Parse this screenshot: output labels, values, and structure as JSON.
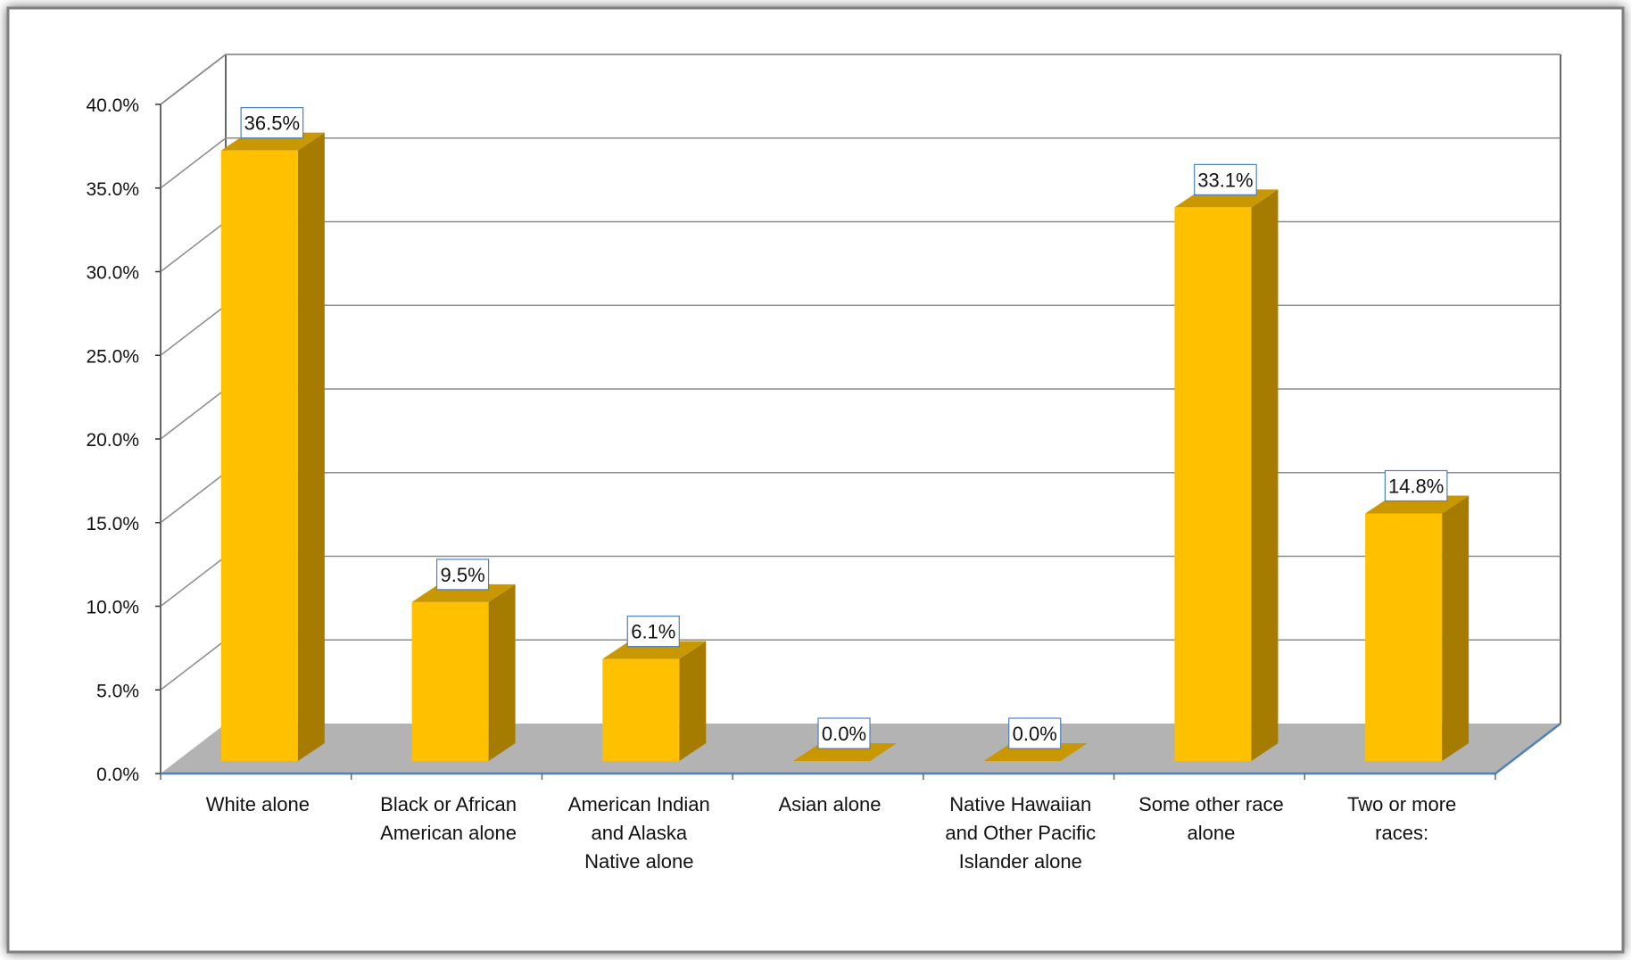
{
  "chart_data": {
    "type": "bar",
    "style": "3d-column",
    "categories": [
      [
        "White alone"
      ],
      [
        "Black or African",
        "American alone"
      ],
      [
        "American Indian",
        "and Alaska",
        "Native alone"
      ],
      [
        "Asian alone"
      ],
      [
        "Native Hawaiian",
        "and Other Pacific",
        "Islander alone"
      ],
      [
        "Some other race",
        "alone"
      ],
      [
        "Two or more",
        "races:"
      ]
    ],
    "values": [
      36.5,
      9.5,
      6.1,
      0.0,
      0.0,
      33.1,
      14.8
    ],
    "data_labels": [
      "36.5%",
      "9.5%",
      "6.1%",
      "0.0%",
      "0.0%",
      "33.1%",
      "14.8%"
    ],
    "title": "",
    "xlabel": "",
    "ylabel": "",
    "ylim": [
      0,
      40
    ],
    "y_ticks": [
      0,
      5,
      10,
      15,
      20,
      25,
      30,
      35,
      40
    ],
    "y_tick_labels": [
      "0.0%",
      "5.0%",
      "10.0%",
      "15.0%",
      "20.0%",
      "25.0%",
      "30.0%",
      "35.0%",
      "40.0%"
    ],
    "grid": true,
    "legend": "none",
    "colors": {
      "bar_front": "#FFC000",
      "bar_side": "#A67C00",
      "bar_top": "#C99700",
      "floor": "#B3B3B3",
      "grid": "#8C8C8C",
      "axis_line": "#4F81BD",
      "label_border": "#4F81BD"
    }
  }
}
